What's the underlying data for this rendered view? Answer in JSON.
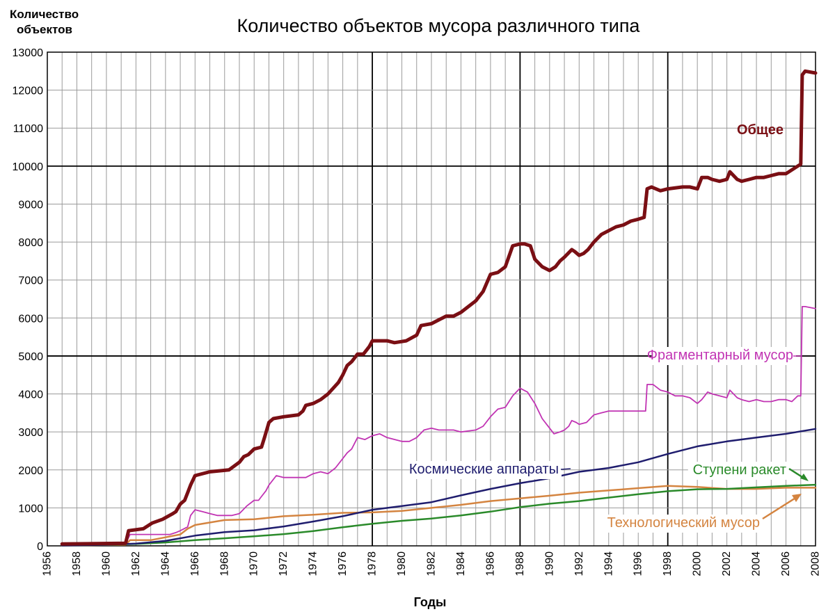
{
  "chart_data": {
    "type": "line",
    "title": "Количество объектов мусора различного типа",
    "ylabel": "Количество объектов",
    "ylabel_lines": [
      "Количество",
      "объектов"
    ],
    "xlabel": "Годы",
    "xlim": [
      1956,
      2008
    ],
    "ylim": [
      0,
      13000
    ],
    "x_ticks": [
      1956,
      1958,
      1960,
      1962,
      1964,
      1966,
      1968,
      1970,
      1972,
      1974,
      1976,
      1978,
      1980,
      1982,
      1984,
      1986,
      1988,
      1990,
      1992,
      1994,
      1996,
      1998,
      2000,
      2002,
      2004,
      2006,
      2008
    ],
    "y_ticks": [
      0,
      1000,
      2000,
      3000,
      4000,
      5000,
      6000,
      7000,
      8000,
      9000,
      10000,
      11000,
      12000,
      13000
    ],
    "grid": true,
    "major_grid_x": [
      1978,
      1988,
      1998
    ],
    "major_grid_y": [
      5000,
      10000
    ],
    "series": [
      {
        "name": "Общее",
        "color": "#7a0f14",
        "x": [
          1957,
          1961.3,
          1961.5,
          1962.5,
          1963.1,
          1963.8,
          1964.5,
          1964.7,
          1965.0,
          1965.3,
          1965.5,
          1965.7,
          1966.0,
          1967.0,
          1968.3,
          1969.0,
          1969.3,
          1969.6,
          1970.0,
          1970.5,
          1970.7,
          1971.0,
          1971.3,
          1972.0,
          1973.0,
          1973.3,
          1973.5,
          1974.0,
          1974.5,
          1975.0,
          1975.7,
          1976.0,
          1976.3,
          1976.6,
          1977.0,
          1977.4,
          1977.8,
          1978.0,
          1979.0,
          1979.5,
          1980.3,
          1981.0,
          1981.3,
          1982.0,
          1982.5,
          1983.0,
          1983.5,
          1984.0,
          1984.5,
          1985.0,
          1985.5,
          1986.0,
          1986.5,
          1987.0,
          1987.5,
          1988.0,
          1988.3,
          1988.7,
          1989.0,
          1989.5,
          1990.0,
          1990.4,
          1990.7,
          1991.0,
          1991.5,
          1991.7,
          1992.0,
          1992.3,
          1992.6,
          1993.0,
          1993.5,
          1994.0,
          1994.5,
          1995.0,
          1995.5,
          1996.0,
          1996.4,
          1996.6,
          1996.9,
          1997.5,
          1998.0,
          1999.0,
          1999.5,
          2000.0,
          2000.3,
          2000.7,
          2001.0,
          2001.5,
          2002.0,
          2002.2,
          2002.7,
          2003.0,
          2003.5,
          2004.0,
          2004.5,
          2005.0,
          2005.5,
          2006.0,
          2006.4,
          2006.8,
          2007.0,
          2007.1,
          2007.3,
          2008
        ],
        "y": [
          50,
          70,
          400,
          450,
          600,
          700,
          850,
          900,
          1100,
          1200,
          1400,
          1600,
          1850,
          1950,
          2000,
          2200,
          2350,
          2400,
          2550,
          2600,
          2850,
          3250,
          3350,
          3400,
          3450,
          3550,
          3700,
          3750,
          3850,
          4000,
          4300,
          4500,
          4750,
          4850,
          5050,
          5050,
          5250,
          5400,
          5400,
          5350,
          5400,
          5550,
          5800,
          5850,
          5950,
          6050,
          6050,
          6150,
          6300,
          6450,
          6700,
          7150,
          7200,
          7350,
          7900,
          7950,
          7950,
          7900,
          7550,
          7350,
          7250,
          7350,
          7500,
          7600,
          7800,
          7750,
          7650,
          7700,
          7800,
          8000,
          8200,
          8300,
          8400,
          8450,
          8550,
          8600,
          8650,
          9400,
          9450,
          9350,
          9400,
          9450,
          9450,
          9400,
          9700,
          9700,
          9650,
          9600,
          9650,
          9850,
          9650,
          9600,
          9650,
          9700,
          9700,
          9750,
          9800,
          9800,
          9900,
          10000,
          10050,
          12400,
          12500,
          12450
        ]
      },
      {
        "name": "Фрагментарный мусор",
        "color": "#c133b3",
        "x": [
          1957,
          1961.3,
          1961.6,
          1962.5,
          1963.5,
          1964.3,
          1964.7,
          1965.0,
          1965.5,
          1965.7,
          1966.0,
          1966.5,
          1967.0,
          1967.5,
          1968.0,
          1968.5,
          1969.0,
          1969.5,
          1970.0,
          1970.3,
          1970.5,
          1970.8,
          1971.0,
          1971.5,
          1972.0,
          1973.0,
          1973.5,
          1974.0,
          1974.5,
          1975.0,
          1975.5,
          1976.0,
          1976.3,
          1976.6,
          1977.0,
          1977.5,
          1978.0,
          1978.5,
          1979.0,
          1980.0,
          1980.5,
          1981.0,
          1981.5,
          1982.0,
          1982.5,
          1983.0,
          1983.5,
          1984.0,
          1985.0,
          1985.5,
          1986.0,
          1986.5,
          1987.0,
          1987.5,
          1988.0,
          1988.5,
          1989.0,
          1989.5,
          1990.0,
          1990.3,
          1990.7,
          1991.0,
          1991.3,
          1991.5,
          1991.8,
          1992.0,
          1992.5,
          1993.0,
          1993.5,
          1994.0,
          1994.5,
          1995.0,
          1995.5,
          1996.0,
          1996.5,
          1996.6,
          1997.0,
          1997.5,
          1998.0,
          1998.5,
          1999.0,
          1999.5,
          2000.0,
          2000.3,
          2000.7,
          2001.0,
          2001.5,
          2002.0,
          2002.2,
          2002.7,
          2003.0,
          2003.5,
          2004.0,
          2004.5,
          2005.0,
          2005.5,
          2006.0,
          2006.4,
          2006.8,
          2007.0,
          2007.1,
          2007.3,
          2008
        ],
        "y": [
          30,
          50,
          300,
          300,
          300,
          300,
          350,
          400,
          500,
          800,
          950,
          900,
          850,
          800,
          800,
          800,
          850,
          1050,
          1200,
          1200,
          1300,
          1450,
          1600,
          1850,
          1800,
          1800,
          1800,
          1900,
          1950,
          1900,
          2050,
          2300,
          2450,
          2550,
          2850,
          2800,
          2900,
          2950,
          2850,
          2750,
          2750,
          2850,
          3050,
          3100,
          3050,
          3050,
          3050,
          3000,
          3050,
          3150,
          3400,
          3600,
          3650,
          3950,
          4150,
          4050,
          3750,
          3350,
          3100,
          2950,
          3000,
          3050,
          3150,
          3300,
          3250,
          3200,
          3250,
          3450,
          3500,
          3550,
          3550,
          3550,
          3550,
          3550,
          3550,
          4250,
          4250,
          4100,
          4050,
          3950,
          3950,
          3900,
          3750,
          3850,
          4050,
          4000,
          3950,
          3900,
          4100,
          3900,
          3850,
          3800,
          3850,
          3800,
          3800,
          3850,
          3850,
          3800,
          3950,
          3950,
          6300,
          6300,
          6250
        ]
      },
      {
        "name": "Космические аппараты",
        "color": "#1f1d6e",
        "x": [
          1957,
          1960,
          1962,
          1964,
          1966,
          1968,
          1970,
          1972,
          1974,
          1976,
          1978,
          1980,
          1982,
          1984,
          1986,
          1988,
          1990,
          1992,
          1994,
          1996,
          1998,
          2000,
          2002,
          2004,
          2006,
          2008
        ],
        "y": [
          10,
          30,
          60,
          130,
          270,
          360,
          410,
          510,
          640,
          780,
          950,
          1050,
          1150,
          1330,
          1500,
          1650,
          1780,
          1950,
          2050,
          2200,
          2420,
          2620,
          2750,
          2850,
          2950,
          3080
        ]
      },
      {
        "name": "Ступени ракет",
        "color": "#2a8a2a",
        "x": [
          1957,
          1960,
          1962,
          1964,
          1966,
          1968,
          1970,
          1972,
          1974,
          1976,
          1978,
          1980,
          1982,
          1984,
          1986,
          1988,
          1990,
          1992,
          1994,
          1996,
          1998,
          2000,
          2002,
          2004,
          2006,
          2008
        ],
        "y": [
          10,
          30,
          50,
          90,
          150,
          200,
          250,
          310,
          390,
          490,
          580,
          660,
          720,
          800,
          900,
          1020,
          1110,
          1180,
          1270,
          1360,
          1440,
          1490,
          1500,
          1540,
          1580,
          1610
        ]
      },
      {
        "name": "Технологический мусор",
        "color": "#d48440",
        "x": [
          1957,
          1961.3,
          1961.6,
          1963,
          1965,
          1965.5,
          1966,
          1968,
          1970,
          1972,
          1974,
          1976,
          1978,
          1980,
          1982,
          1984,
          1986,
          1988,
          1990,
          1992,
          1994,
          1996,
          1998,
          2000,
          2002,
          2004,
          2006,
          2008
        ],
        "y": [
          10,
          30,
          150,
          150,
          300,
          450,
          550,
          680,
          700,
          780,
          820,
          870,
          880,
          920,
          1000,
          1080,
          1180,
          1250,
          1320,
          1400,
          1460,
          1520,
          1580,
          1550,
          1500,
          1500,
          1530,
          1530
        ]
      }
    ],
    "annotations": [
      {
        "text": "Общее",
        "series": 0
      },
      {
        "text": "Фрагментарный мусор",
        "series": 1
      },
      {
        "text": "Космические аппараты",
        "series": 2
      },
      {
        "text": "Ступени ракет",
        "series": 3
      },
      {
        "text": "Технологический мусор",
        "series": 4
      }
    ]
  }
}
